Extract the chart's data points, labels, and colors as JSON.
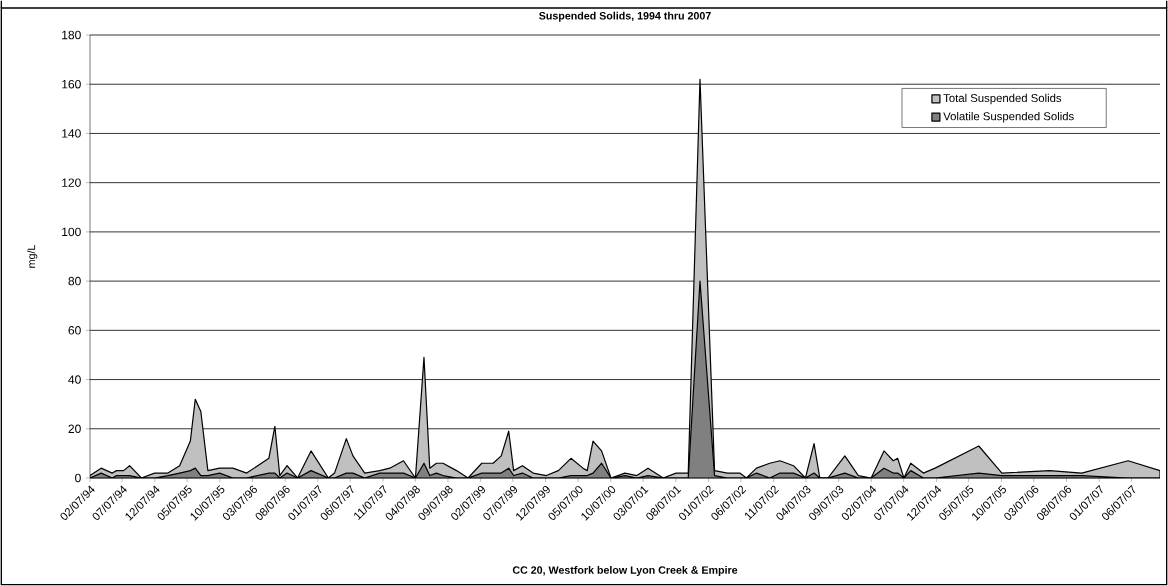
{
  "chart_data": {
    "type": "area",
    "title": "Suspended Solids, 1994 thru 2007",
    "xlabel": "CC 20, Westfork below Lyon Creek & Empire",
    "ylabel": "mg/L",
    "x": [
      "1994-02-07",
      "1994-03-31",
      "1994-05-22",
      "1994-06-11",
      "1994-07-14",
      "1994-08-11",
      "1994-10-05",
      "1994-12-06",
      "1995-02-06",
      "1995-04-02",
      "1995-05-22",
      "1995-06-14",
      "1995-07-10",
      "1995-08-12",
      "1995-10-06",
      "1995-12-07",
      "1996-02-09",
      "1996-05-23",
      "1996-06-20",
      "1996-07-13",
      "1996-08-16",
      "1996-10-04",
      "1996-12-06",
      "1997-02-25",
      "1997-03-26",
      "1997-05-20",
      "1997-06-20",
      "1997-08-14",
      "1997-10-23",
      "1997-12-09",
      "1998-02-11",
      "1998-04-08",
      "1998-05-18",
      "1998-06-14",
      "1998-07-15",
      "1998-08-15",
      "1998-10-17",
      "1998-12-10",
      "1999-02-12",
      "1999-04-06",
      "1999-05-14",
      "1999-06-18",
      "1999-07-11",
      "1999-08-21",
      "1999-10-10",
      "1999-12-11",
      "2000-02-05",
      "2000-04-04",
      "2000-05-30",
      "2000-06-19",
      "2000-07-16",
      "2000-08-25",
      "2000-10-08",
      "2000-12-12",
      "2001-02-06",
      "2001-03-30",
      "2001-06-09",
      "2001-08-08",
      "2001-10-04",
      "2001-11-28",
      "2002-02-04",
      "2002-04-05",
      "2002-06-02",
      "2002-07-03",
      "2002-08-19",
      "2002-10-20",
      "2002-12-07",
      "2003-02-08",
      "2003-04-05",
      "2003-05-15",
      "2003-06-11",
      "2003-07-19",
      "2003-10-06",
      "2003-12-08",
      "2004-02-06",
      "2004-04-06",
      "2004-05-19",
      "2004-06-09",
      "2004-07-08",
      "2004-08-09",
      "2004-10-07",
      "2004-12-01",
      "2005-06-23",
      "2005-10-09",
      "2006-05-21",
      "2006-10-17",
      "2007-05-22",
      "2007-10-18"
    ],
    "series": [
      {
        "name": "Total Suspended Solids",
        "color": "#c0c0c0",
        "values": [
          1,
          4,
          2,
          3,
          3,
          5,
          0,
          2,
          2,
          5,
          15,
          32,
          27,
          3,
          4,
          4,
          2,
          8,
          21,
          1,
          5,
          0,
          11,
          0,
          2,
          16,
          9,
          2,
          3,
          4,
          7,
          0,
          49,
          4,
          6,
          6,
          3,
          0,
          6,
          6,
          9,
          19,
          3,
          5,
          2,
          1,
          3,
          8,
          4,
          3,
          15,
          11,
          0,
          2,
          1,
          4,
          0,
          2,
          2,
          162,
          3,
          2,
          2,
          0,
          4,
          6,
          7,
          5,
          0,
          14,
          0,
          0,
          9,
          1,
          0,
          11,
          7,
          8,
          0,
          6,
          2,
          4,
          13,
          2,
          3,
          2,
          7,
          3
        ]
      },
      {
        "name": "Volatile Suspended Solids",
        "color": "#808080",
        "values": [
          0,
          2,
          0,
          1,
          1,
          1,
          0,
          0,
          1,
          2,
          3,
          4,
          1,
          1,
          2,
          0,
          0,
          2,
          2,
          0,
          2,
          0,
          3,
          0,
          0,
          2,
          2,
          0,
          2,
          2,
          2,
          0,
          6,
          1,
          2,
          1,
          0,
          0,
          2,
          2,
          2,
          4,
          1,
          2,
          0,
          0,
          0,
          1,
          1,
          1,
          2,
          6,
          0,
          1,
          0,
          1,
          0,
          0,
          0,
          80,
          1,
          0,
          0,
          0,
          2,
          0,
          2,
          2,
          0,
          2,
          0,
          0,
          2,
          0,
          0,
          4,
          2,
          2,
          0,
          3,
          0,
          0,
          2,
          1,
          1,
          1,
          0,
          0
        ]
      }
    ],
    "xlim": [
      "1994-02-07",
      "2007-10-18"
    ],
    "xticks": [
      {
        "value": "1994-02-07",
        "label": "02/07/94"
      },
      {
        "value": "1994-07-07",
        "label": "07/07/94"
      },
      {
        "value": "1994-12-07",
        "label": "12/07/94"
      },
      {
        "value": "1995-05-07",
        "label": "05/07/95"
      },
      {
        "value": "1995-10-07",
        "label": "10/07/95"
      },
      {
        "value": "1996-03-07",
        "label": "03/07/96"
      },
      {
        "value": "1996-08-07",
        "label": "08/07/96"
      },
      {
        "value": "1997-01-07",
        "label": "01/07/97"
      },
      {
        "value": "1997-06-07",
        "label": "06/07/97"
      },
      {
        "value": "1997-11-07",
        "label": "11/07/97"
      },
      {
        "value": "1998-04-07",
        "label": "04/07/98"
      },
      {
        "value": "1998-09-07",
        "label": "09/07/98"
      },
      {
        "value": "1999-02-07",
        "label": "02/07/99"
      },
      {
        "value": "1999-07-07",
        "label": "07/07/99"
      },
      {
        "value": "1999-12-07",
        "label": "12/07/99"
      },
      {
        "value": "2000-05-07",
        "label": "05/07/00"
      },
      {
        "value": "2000-10-07",
        "label": "10/07/00"
      },
      {
        "value": "2001-03-07",
        "label": "03/07/01"
      },
      {
        "value": "2001-08-07",
        "label": "08/07/01"
      },
      {
        "value": "2002-01-07",
        "label": "01/07/02"
      },
      {
        "value": "2002-06-07",
        "label": "06/07/02"
      },
      {
        "value": "2002-11-07",
        "label": "11/07/02"
      },
      {
        "value": "2003-04-07",
        "label": "04/07/03"
      },
      {
        "value": "2003-09-07",
        "label": "09/07/03"
      },
      {
        "value": "2004-02-07",
        "label": "02/07/04"
      },
      {
        "value": "2004-07-07",
        "label": "07/07/04"
      },
      {
        "value": "2004-12-07",
        "label": "12/07/04"
      },
      {
        "value": "2005-05-07",
        "label": "05/07/05"
      },
      {
        "value": "2005-10-07",
        "label": "10/07/05"
      },
      {
        "value": "2006-03-07",
        "label": "03/07/06"
      },
      {
        "value": "2006-08-07",
        "label": "08/07/06"
      },
      {
        "value": "2007-01-07",
        "label": "01/07/07"
      },
      {
        "value": "2007-06-07",
        "label": "06/07/07"
      }
    ],
    "ylim": [
      0,
      180
    ],
    "yticks": [
      0,
      20,
      40,
      60,
      80,
      100,
      120,
      140,
      160,
      180
    ],
    "grid": "y",
    "legend": "top right"
  }
}
